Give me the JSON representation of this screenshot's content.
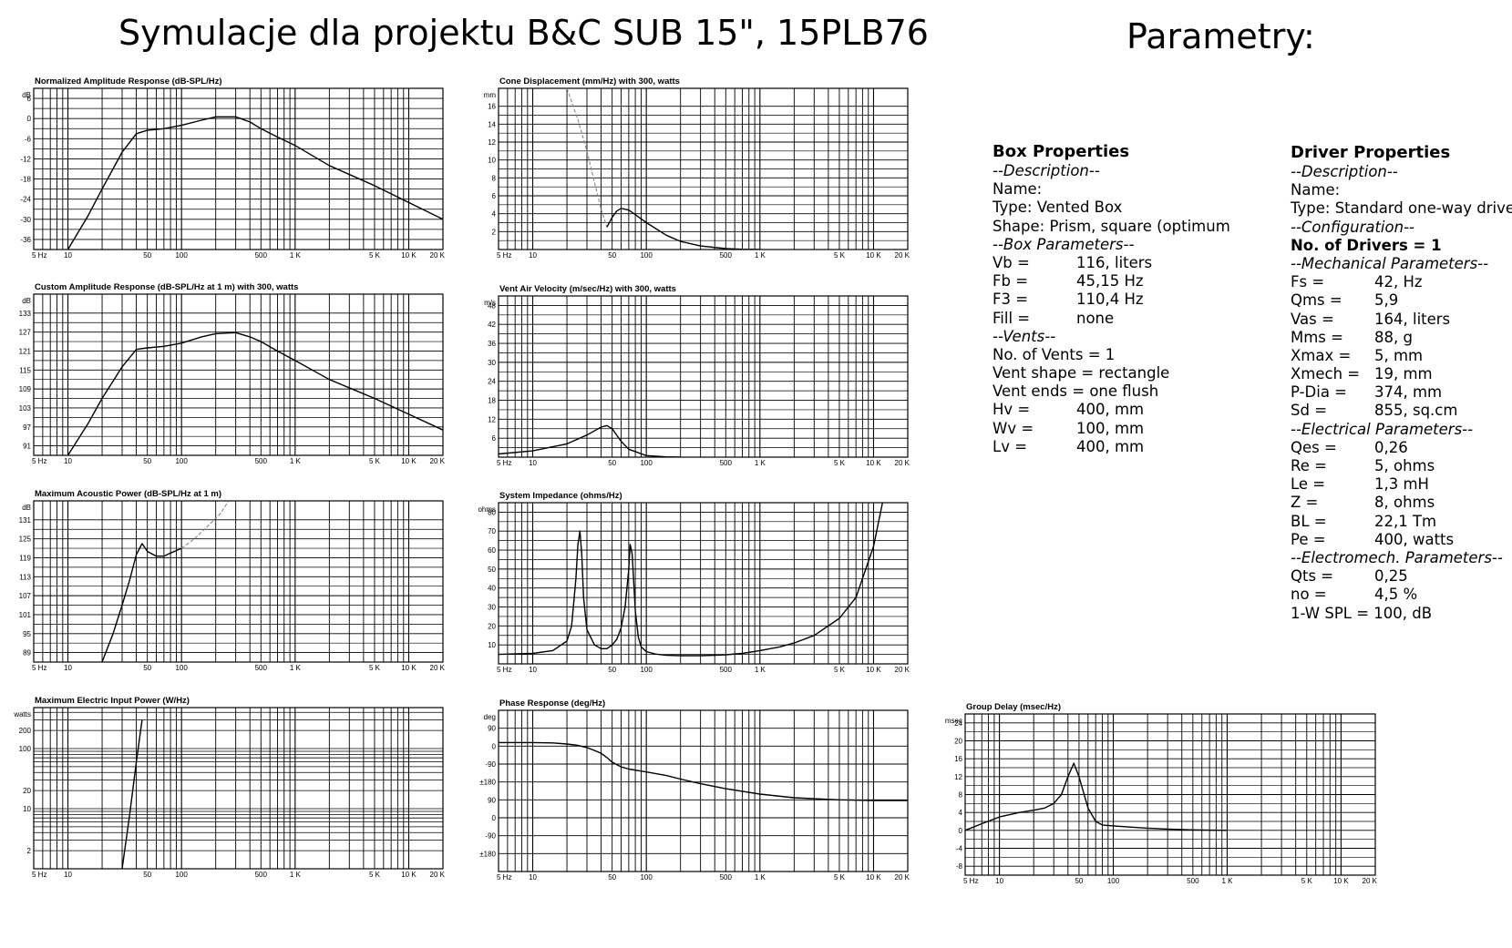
{
  "title": "Symulacje dla projektu B&C SUB 15\", 15PLB76",
  "params_title": "Parametry:",
  "freq_ticks": [
    "5 Hz",
    "10",
    "50",
    "100",
    "500",
    "1 K",
    "5 K",
    "10 K",
    "20 K"
  ],
  "box_properties": {
    "heading": "Box Properties",
    "rows": [
      {
        "t": "sec",
        "text": "--Description--"
      },
      {
        "t": "plain",
        "text": "Name:"
      },
      {
        "t": "plain",
        "text": "Type: Vented Box"
      },
      {
        "t": "plain",
        "text": "Shape: Prism, square (optimum"
      },
      {
        "t": "sec",
        "text": "--Box Parameters--"
      },
      {
        "t": "kv",
        "k": "Vb =",
        "v": "116, liters"
      },
      {
        "t": "kv",
        "k": "Fb =",
        "v": "45,15 Hz"
      },
      {
        "t": "kv",
        "k": "F3 =",
        "v": "110,4 Hz"
      },
      {
        "t": "kv",
        "k": "Fill =",
        "v": "none"
      },
      {
        "t": "sec",
        "text": "--Vents--"
      },
      {
        "t": "plain",
        "text": "No. of Vents = 1"
      },
      {
        "t": "plain",
        "text": "Vent shape = rectangle"
      },
      {
        "t": "plain",
        "text": "Vent ends = one flush"
      },
      {
        "t": "kv",
        "k": "Hv =",
        "v": "400, mm"
      },
      {
        "t": "kv",
        "k": "Wv =",
        "v": "100, mm"
      },
      {
        "t": "kv",
        "k": "Lv =",
        "v": "400, mm"
      }
    ]
  },
  "driver_properties": {
    "heading": "Driver Properties",
    "rows": [
      {
        "t": "sec",
        "text": "--Description--"
      },
      {
        "t": "plain",
        "text": "Name:"
      },
      {
        "t": "plain",
        "text": "Type: Standard one-way driver"
      },
      {
        "t": "sec",
        "text": "--Configuration--"
      },
      {
        "t": "bold",
        "text": "No. of Drivers = 1"
      },
      {
        "t": "sec",
        "text": "--Mechanical Parameters--"
      },
      {
        "t": "kv",
        "k": "Fs =",
        "v": "42, Hz"
      },
      {
        "t": "kv",
        "k": "Qms =",
        "v": "5,9"
      },
      {
        "t": "kv",
        "k": "Vas =",
        "v": "164, liters"
      },
      {
        "t": "kv",
        "k": "Mms =",
        "v": "88, g"
      },
      {
        "t": "kv",
        "k": "Xmax =",
        "v": "5, mm"
      },
      {
        "t": "kv",
        "k": "Xmech =",
        "v": "19, mm"
      },
      {
        "t": "kv",
        "k": "P-Dia =",
        "v": "374, mm"
      },
      {
        "t": "kv",
        "k": "Sd =",
        "v": "855, sq.cm"
      },
      {
        "t": "sec",
        "text": "--Electrical Parameters--"
      },
      {
        "t": "kv",
        "k": "Qes =",
        "v": "0,26"
      },
      {
        "t": "kv",
        "k": "Re =",
        "v": "5, ohms"
      },
      {
        "t": "kv",
        "k": "Le =",
        "v": "1,3 mH"
      },
      {
        "t": "kv",
        "k": "Z =",
        "v": "8, ohms"
      },
      {
        "t": "kv",
        "k": "BL =",
        "v": "22,1 Tm"
      },
      {
        "t": "kv",
        "k": "Pe =",
        "v": "400, watts"
      },
      {
        "t": "sec",
        "text": "--Electromech. Parameters--"
      },
      {
        "t": "kv",
        "k": "Qts =",
        "v": "0,25"
      },
      {
        "t": "kv",
        "k": "no =",
        "v": "4,5 %"
      },
      {
        "t": "plain",
        "text": "1-W SPL = 100, dB"
      }
    ]
  },
  "chart_data": [
    {
      "id": "norm",
      "type": "line",
      "title": "Normalized Amplitude Response (dB-SPL/Hz)",
      "unit": "dB",
      "yticks": [
        6,
        0,
        -6,
        -12,
        -18,
        -24,
        -30,
        -36
      ],
      "ylim": [
        -39,
        9
      ],
      "hlines": "ticks",
      "series": [
        {
          "x": [
            10,
            15,
            20,
            30,
            40,
            50,
            70,
            100,
            150,
            200,
            300,
            400,
            500,
            700,
            1000,
            2000,
            5000,
            10000,
            20000
          ],
          "y": [
            -39,
            -29,
            -21,
            -10,
            -4.5,
            -3.5,
            -3,
            -2,
            -0.5,
            0.5,
            0.5,
            -1,
            -3,
            -5.5,
            -8,
            -14,
            -20,
            -25,
            -30
          ]
        }
      ]
    },
    {
      "id": "cone",
      "type": "line",
      "title": "Cone Displacement (mm/Hz) with 300, watts",
      "unit": "mm",
      "yticks": [
        16,
        14,
        12,
        10,
        8,
        6,
        4,
        2
      ],
      "ylim": [
        0,
        18
      ],
      "hlines": "ticks",
      "series": [
        {
          "style": "dashed",
          "x": [
            20,
            25,
            30,
            35,
            40,
            45
          ],
          "y": [
            18,
            14.5,
            11,
            7.5,
            4.5,
            2.5
          ]
        },
        {
          "x": [
            45,
            50,
            55,
            60,
            70,
            80,
            100,
            150,
            200,
            300,
            500,
            700,
            1000
          ],
          "y": [
            2.5,
            3.6,
            4.3,
            4.6,
            4.4,
            3.9,
            3,
            1.6,
            0.9,
            0.4,
            0.1,
            0.03,
            0
          ]
        }
      ]
    },
    {
      "id": "custom",
      "type": "line",
      "title": "Custom Amplitude Response (dB-SPL/Hz at 1 m) with 300, watts",
      "unit": "dB",
      "yticks": [
        133,
        127,
        121,
        115,
        109,
        103,
        97,
        91
      ],
      "ylim": [
        88,
        139
      ],
      "hlines": "ticks",
      "series": [
        {
          "x": [
            10,
            15,
            20,
            30,
            40,
            50,
            70,
            100,
            150,
            200,
            300,
            400,
            500,
            700,
            1000,
            2000,
            5000,
            10000,
            20000
          ],
          "y": [
            88,
            98,
            106,
            116,
            121.5,
            122,
            122.5,
            123.5,
            125.5,
            126.5,
            126.8,
            125.5,
            124,
            121,
            118,
            112,
            106,
            101,
            96
          ]
        }
      ]
    },
    {
      "id": "vent",
      "type": "line",
      "title": "Vent Air Velocity (m/sec/Hz) with 300, watts",
      "unit": "m/s",
      "yticks": [
        48,
        42,
        36,
        30,
        24,
        18,
        12,
        6
      ],
      "ylim": [
        0,
        51
      ],
      "hlines": "ticks",
      "series": [
        {
          "x": [
            5,
            10,
            20,
            30,
            40,
            45,
            50,
            60,
            70,
            100,
            150,
            200
          ],
          "y": [
            1,
            2,
            4.2,
            7,
            9.5,
            10,
            9,
            5,
            2.5,
            0.5,
            0.1,
            0
          ]
        }
      ]
    },
    {
      "id": "maxpow",
      "type": "line",
      "title": "Maximum Acoustic Power (dB-SPL/Hz at 1 m)",
      "unit": "dB",
      "yticks": [
        131,
        125,
        119,
        113,
        107,
        101,
        95,
        89
      ],
      "ylim": [
        86,
        137
      ],
      "hlines": "ticks",
      "series": [
        {
          "x": [
            20,
            25,
            30,
            35,
            40,
            45,
            50,
            60,
            70,
            80,
            100
          ],
          "y": [
            86,
            95,
            104,
            112,
            120,
            123.5,
            121,
            119.5,
            119.5,
            120.5,
            122
          ]
        },
        {
          "style": "dashed",
          "x": [
            100,
            130,
            170,
            220,
            260
          ],
          "y": [
            122,
            125,
            129,
            133,
            137
          ]
        }
      ]
    },
    {
      "id": "imp",
      "type": "line",
      "title": "System Impedance (ohms/Hz)",
      "unit": "ohms",
      "yticks": [
        80,
        70,
        60,
        50,
        40,
        30,
        20,
        10
      ],
      "ylim": [
        0,
        85
      ],
      "hlines": "ticks",
      "series": [
        {
          "x": [
            5,
            10,
            15,
            20,
            22,
            24,
            25,
            26,
            27,
            28,
            30,
            35,
            40,
            45,
            50,
            55,
            60,
            65,
            70,
            72,
            75,
            78,
            80,
            85,
            90,
            100,
            120,
            150,
            200,
            300,
            400,
            500,
            700,
            1000,
            1500,
            2000,
            3000,
            5000,
            7000,
            10000,
            12000
          ],
          "y": [
            5,
            5.5,
            7,
            12,
            20,
            45,
            63,
            70,
            58,
            35,
            18,
            10,
            8,
            8,
            10,
            13,
            19,
            30,
            50,
            63,
            58,
            40,
            28,
            14,
            9,
            6.5,
            5.2,
            4.5,
            4.3,
            4.3,
            4.5,
            4.8,
            5.5,
            7,
            9,
            11,
            15,
            24,
            35,
            62,
            85
          ]
        }
      ]
    },
    {
      "id": "elec",
      "type": "line",
      "title": "Maximum Electric Input Power (W/Hz)",
      "unit": "watts",
      "yticks": [
        200,
        100,
        20,
        10,
        2
      ],
      "ylim": [
        1,
        480
      ],
      "log": true,
      "hlines": [
        400,
        300,
        200,
        100,
        90,
        80,
        70,
        60,
        50,
        40,
        30,
        20,
        10,
        9,
        8,
        7,
        6,
        5,
        4,
        3,
        2,
        1
      ],
      "series": [
        {
          "x": [
            30,
            35,
            40,
            45
          ],
          "y": [
            1,
            8,
            60,
            300
          ]
        }
      ]
    },
    {
      "id": "phase",
      "type": "line",
      "title": "Phase Response (deg/Hz)",
      "unit": "deg",
      "yticks": [
        "90",
        "0",
        "-90",
        "±180",
        "90",
        "0",
        "-90",
        "±180"
      ],
      "ylim": [
        -180,
        270
      ],
      "hlines": "ticks",
      "series": [
        {
          "x": [
            5,
            10,
            15,
            20,
            25,
            30,
            35,
            40,
            45,
            50,
            60,
            70,
            100,
            150,
            200,
            300,
            500,
            1000,
            2000,
            5000,
            10000,
            20000
          ],
          "y": [
            180,
            180,
            179,
            176,
            172,
            166,
            158,
            150,
            138,
            125,
            112,
            106,
            98,
            88,
            78,
            65,
            51,
            36,
            26,
            20,
            18,
            18
          ]
        }
      ]
    },
    {
      "id": "gd",
      "type": "line",
      "title": "Group Delay (msec/Hz)",
      "unit": "msec",
      "yticks": [
        24,
        20,
        16,
        12,
        8,
        4,
        0,
        -4,
        -8
      ],
      "ylim": [
        -10,
        26
      ],
      "hlines": "ticks",
      "series": [
        {
          "x": [
            5,
            7,
            10,
            15,
            20,
            25,
            30,
            35,
            40,
            45,
            50,
            60,
            70,
            80,
            100,
            150,
            200,
            300,
            500,
            1000
          ],
          "y": [
            0,
            1.5,
            3,
            4,
            4.5,
            5,
            6,
            8,
            12,
            15,
            12,
            5,
            2,
            1.2,
            1,
            0.7,
            0.5,
            0.3,
            0.1,
            0
          ]
        }
      ]
    }
  ]
}
